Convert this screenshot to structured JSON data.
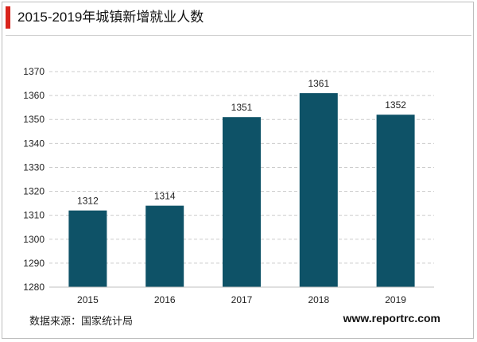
{
  "title": "2015-2019年城镇新增就业人数",
  "source": "数据来源：国家统计局",
  "website": "www.reportrc.com",
  "colors": {
    "bar": "#0e5267",
    "accent": "#d9241c",
    "grid": "#cccccc"
  },
  "chart_data": {
    "type": "bar",
    "categories": [
      "2015",
      "2016",
      "2017",
      "2018",
      "2019"
    ],
    "values": [
      1312,
      1314,
      1351,
      1361,
      1352
    ],
    "data_labels": [
      "1312",
      "1314",
      "1351",
      "1361",
      "1352"
    ],
    "ylim": [
      1280,
      1370
    ],
    "yticks": [
      1280,
      1290,
      1300,
      1310,
      1320,
      1330,
      1340,
      1350,
      1360,
      1370
    ],
    "grid": true,
    "title": "",
    "xlabel": "",
    "ylabel": ""
  }
}
